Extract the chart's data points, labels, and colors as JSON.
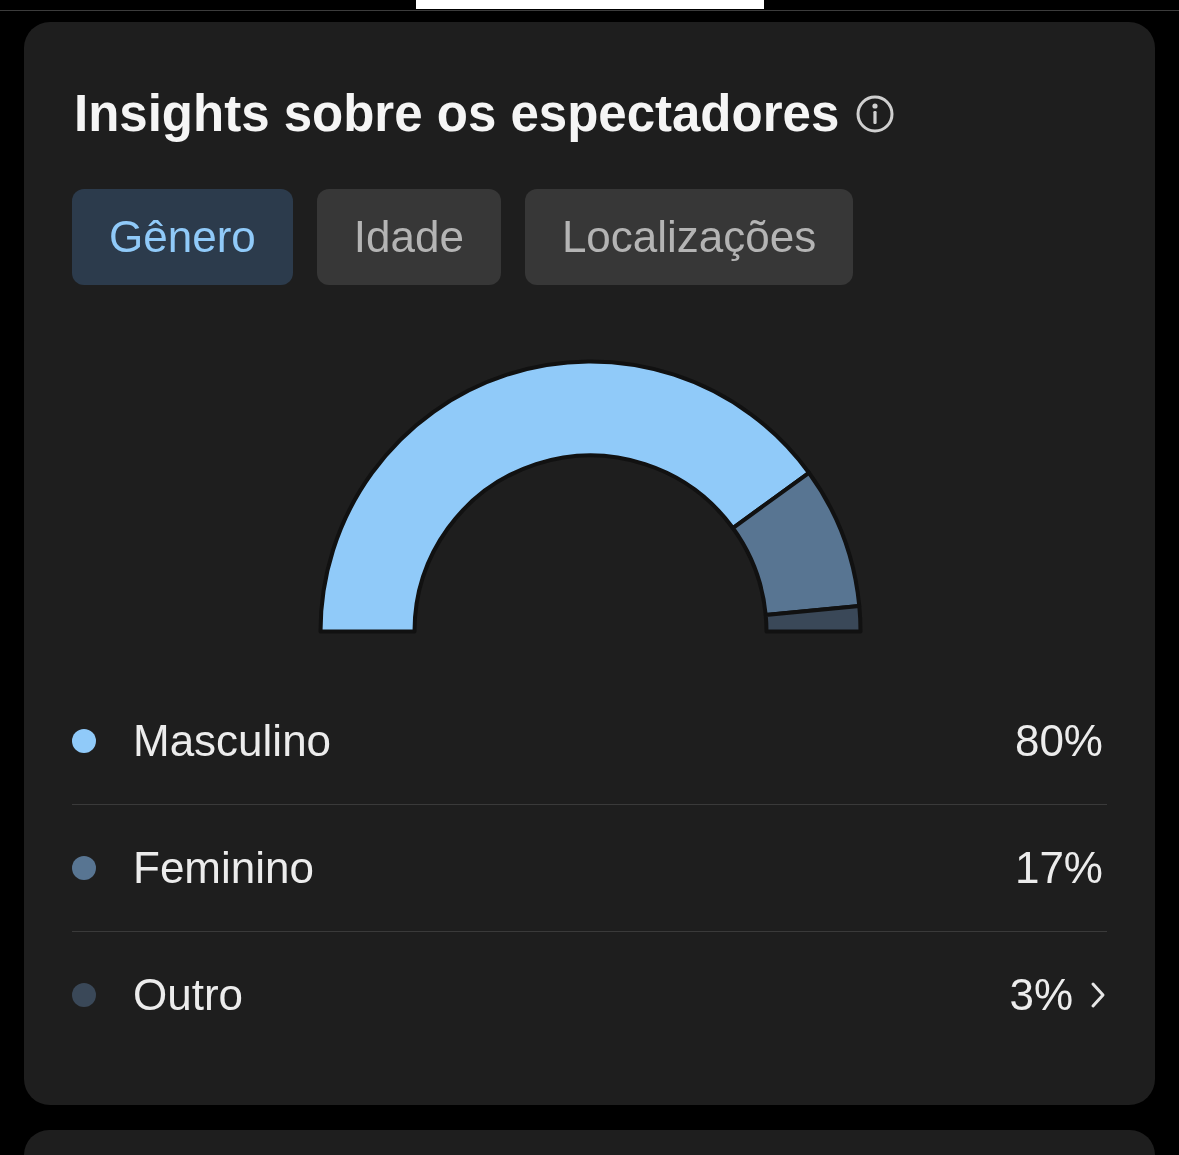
{
  "chart_data": {
    "type": "donut",
    "title": "Insights sobre os espectadores",
    "annotations": [
      "Gênero",
      "Idade",
      "Localizações"
    ],
    "categories": [
      "Masculino",
      "Feminino",
      "Outro"
    ],
    "values": [
      80,
      17,
      3
    ],
    "colors": [
      "#90caf9",
      "#587592",
      "#3a4858"
    ],
    "value_labels": [
      "80%",
      "17%",
      "3%"
    ],
    "legend": "bottom"
  }
}
